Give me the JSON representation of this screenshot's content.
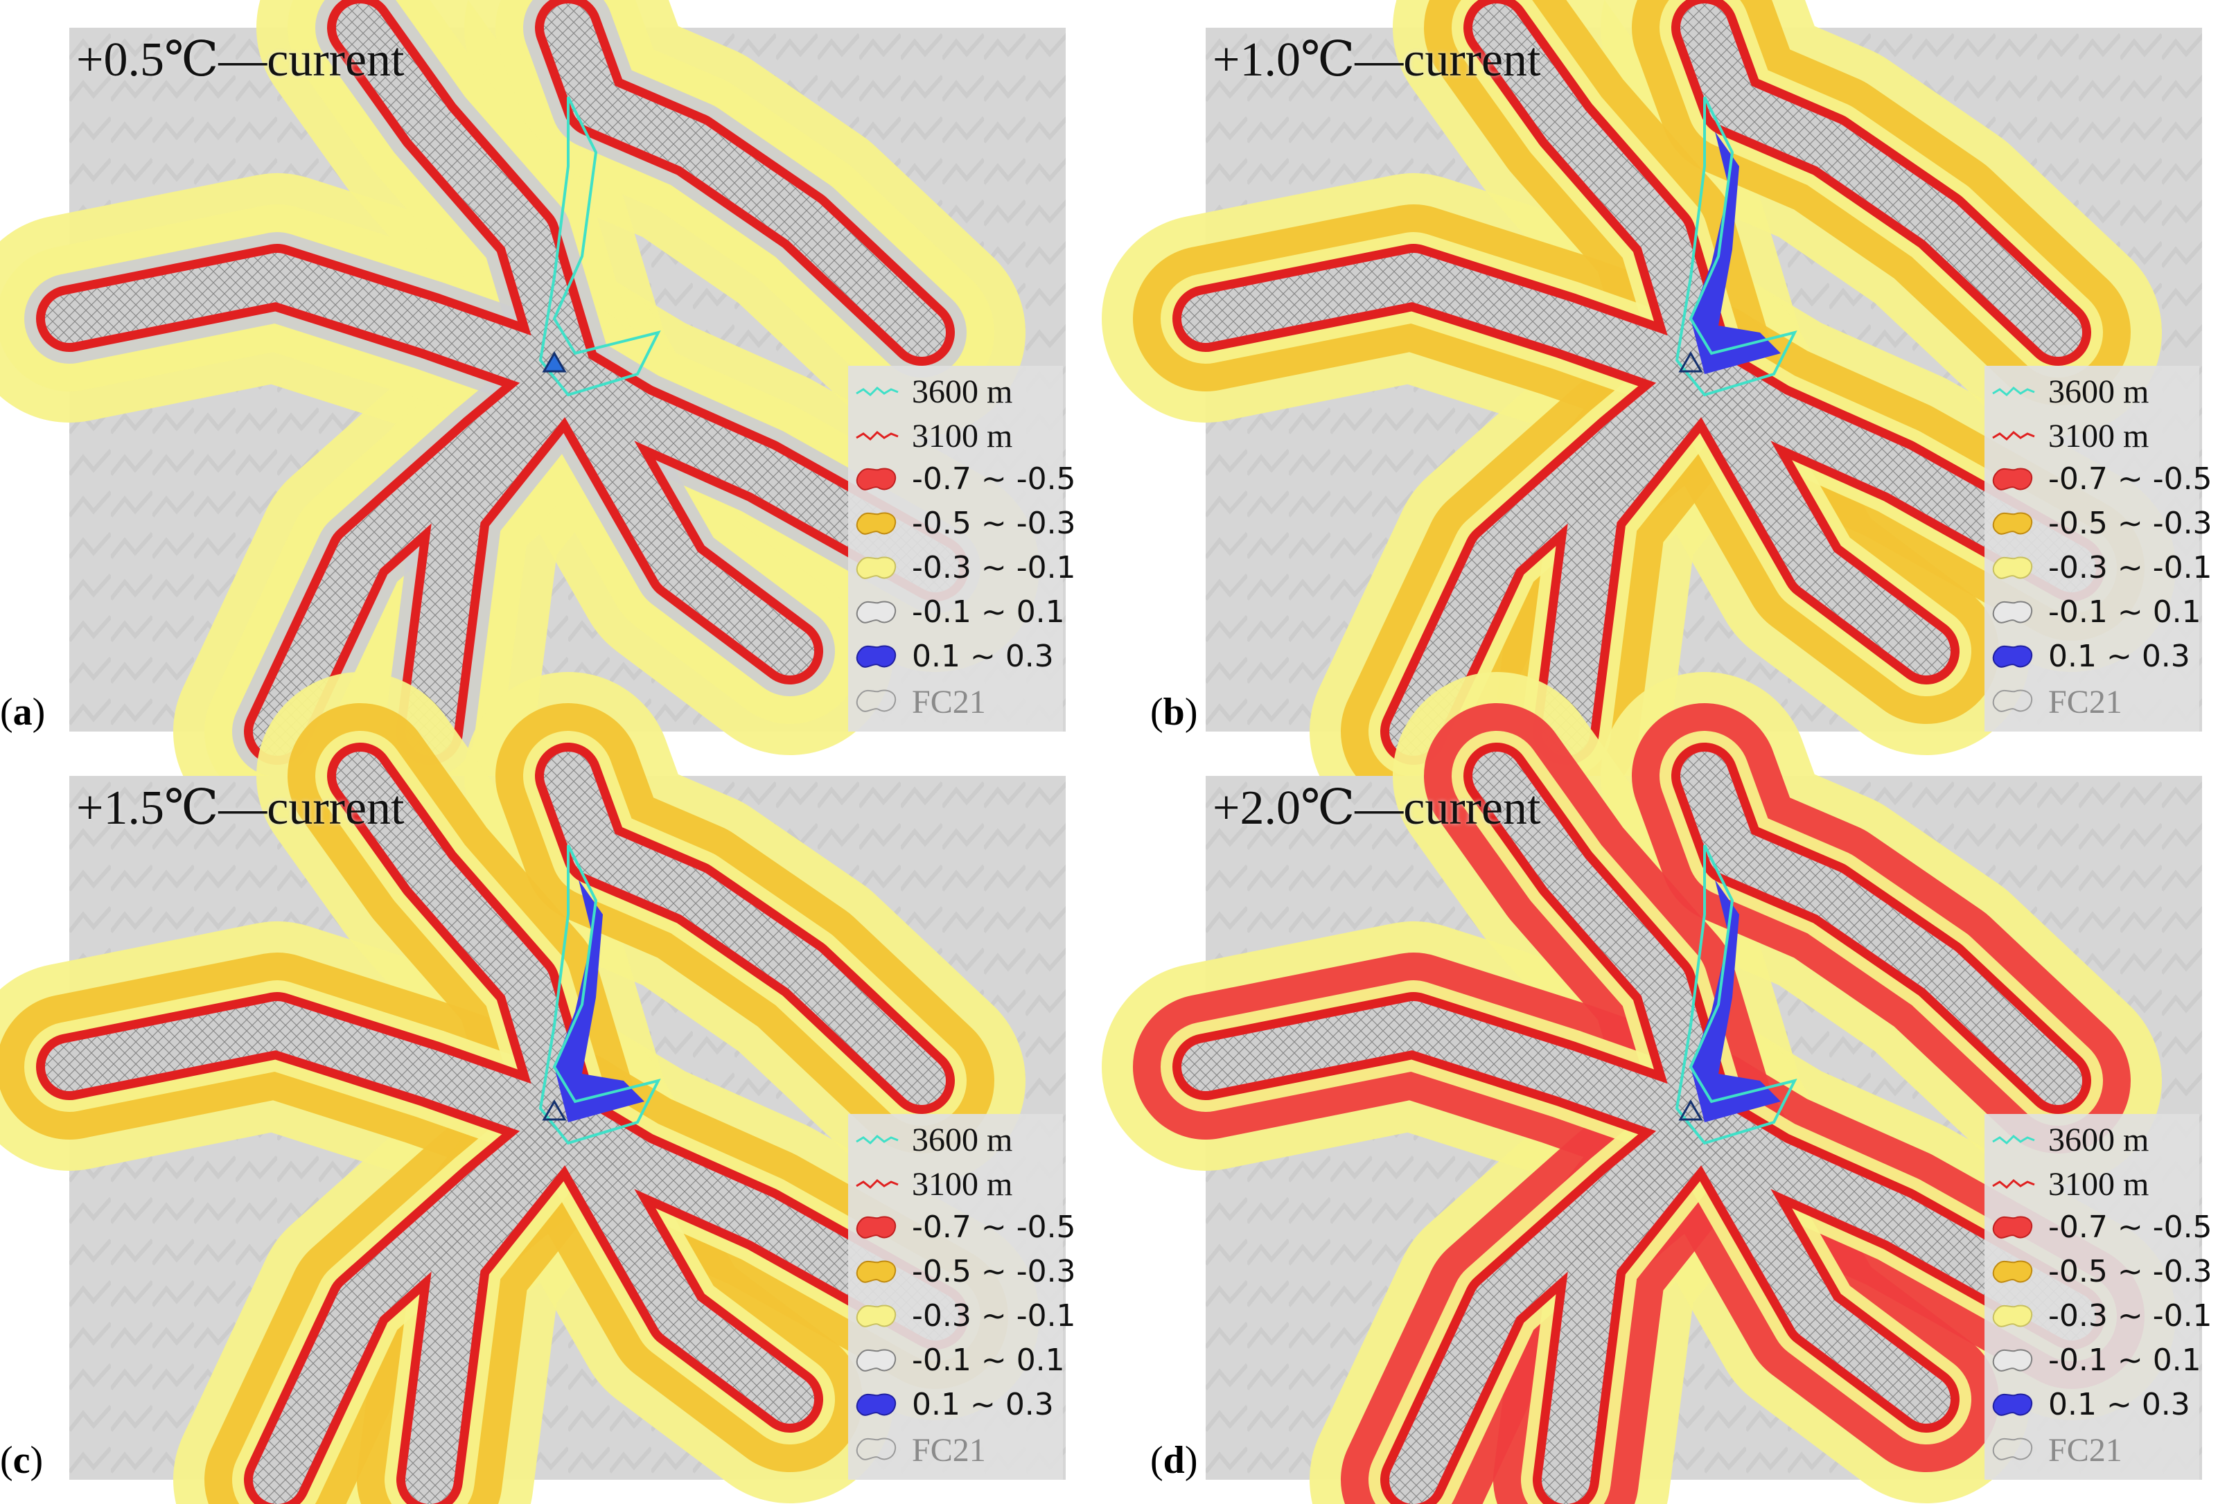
{
  "figure": {
    "panels": [
      {
        "letter": "a",
        "title": "+0.5℃—current",
        "zones": [
          "yellow",
          "yellow",
          "gray"
        ],
        "summit_filled": true,
        "has_blue": false
      },
      {
        "letter": "b",
        "title": "+1.0℃—current",
        "zones": [
          "yellow",
          "orange",
          "yellow"
        ],
        "summit_filled": false,
        "has_blue": true,
        "blue_size": "medium"
      },
      {
        "letter": "c",
        "title": "+1.5℃—current",
        "zones": [
          "yellow",
          "orange",
          "yellow"
        ],
        "summit_filled": false,
        "has_blue": true,
        "blue_size": "medium"
      },
      {
        "letter": "d",
        "title": "+2.0℃—current",
        "zones": [
          "yellow",
          "red",
          "yellow"
        ],
        "summit_filled": false,
        "has_blue": true,
        "blue_size": "medium"
      }
    ],
    "legends": [
      [
        "3600 m",
        "3100 m",
        "-0.7 ~ -0.5",
        "-0.5 ~ -0.3",
        "-0.3 ~ -0.1",
        "-0.1 ~ 0.1",
        "0.1 ~ 0.3",
        "FC21"
      ],
      [
        "3600 m",
        "3100 m",
        "-0.7 ~ -0.5",
        "-0.5 ~ -0.3",
        "-0.3 ~ -0.1",
        "-0.1 ~  0.1",
        "0.1 ~  0.3",
        "FC21"
      ],
      [
        "3600 m",
        "3100 m",
        "-0.7 ~ -0.5",
        "-0.5 ~ -0.3",
        "-0.3 ~ -0.1",
        "-0.1 ~ 0.1",
        "0.1 ~ 0.3",
        "FC21"
      ],
      [
        "3600 m",
        "3100 m",
        "-0.7 ~ -0.5",
        "-0.5 ~ -0.3",
        "-0.3 ~ -0.1",
        "-0.1 ~ 0.1",
        "0.1 ~ 0.3",
        "FC21"
      ]
    ],
    "legend_symbols": [
      "cyan-line",
      "red-line",
      "red-blob",
      "orange-blob",
      "yellow-blob",
      "white-blob",
      "blue-blob",
      "hatch-blob"
    ]
  },
  "colors": {
    "terrain": "#d6d6d6",
    "terrain_dark": "#c4c4c4",
    "yellow": "#f7f28a",
    "orange": "#f2c434",
    "red": "#ee3e3e",
    "blue": "#3a3ae6",
    "gray": "#cfcfcf",
    "contour_3600": "#3fe0c8",
    "contour_3100": "#e02020",
    "hatch": "#8a8a8a",
    "summit": "#2a6fdc"
  }
}
